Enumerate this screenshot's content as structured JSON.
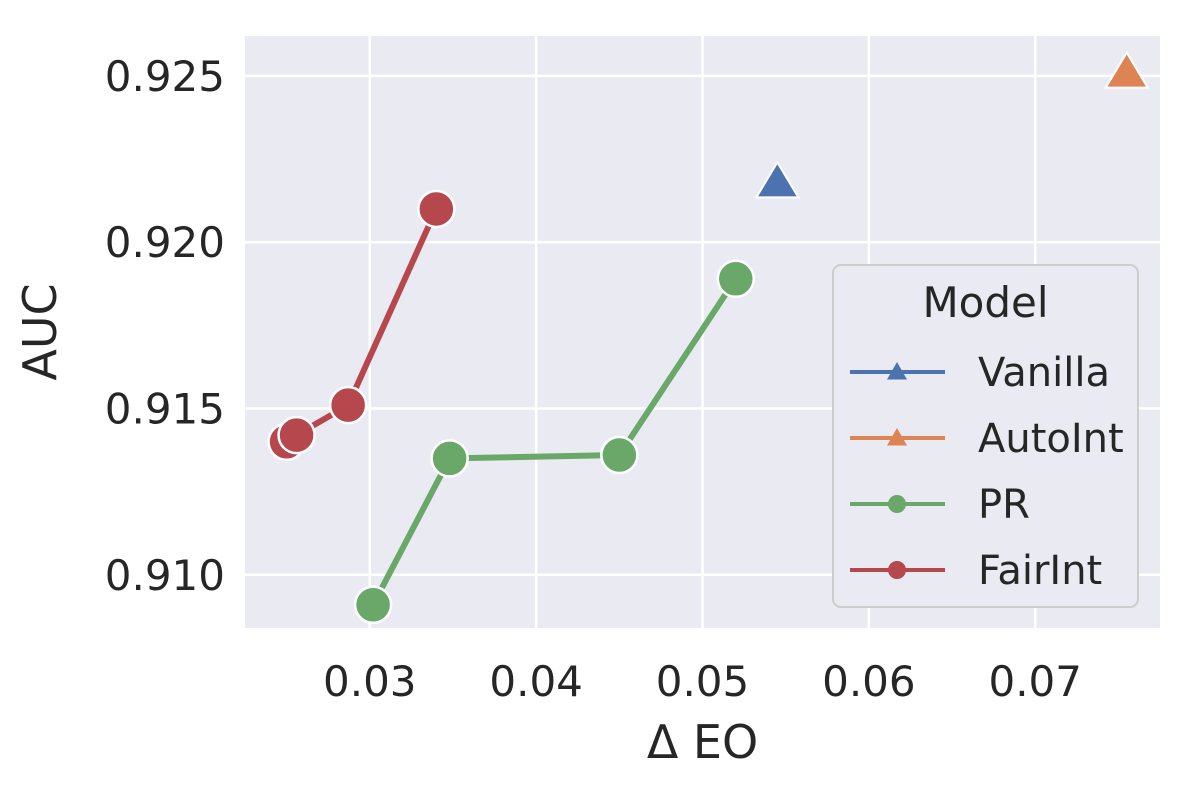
{
  "chart_data": {
    "type": "line",
    "xlabel": "Δ EO",
    "ylabel": "AUC",
    "xlim": [
      0.0225,
      0.0775
    ],
    "ylim": [
      0.9084,
      0.9262
    ],
    "xticks": [
      0.03,
      0.04,
      0.05,
      0.06,
      0.07
    ],
    "xtick_labels": [
      "0.03",
      "0.04",
      "0.05",
      "0.06",
      "0.07"
    ],
    "yticks": [
      0.91,
      0.915,
      0.92,
      0.925
    ],
    "ytick_labels": [
      "0.910",
      "0.915",
      "0.920",
      "0.925"
    ],
    "grid": true,
    "background": "#eaeaf2",
    "legend": {
      "title": "Model",
      "placement": "center-right"
    },
    "series": [
      {
        "name": "Vanilla",
        "marker": "triangle",
        "color": "#4c72b0",
        "x": [
          0.0545
        ],
        "y": [
          0.9218
        ]
      },
      {
        "name": "AutoInt",
        "marker": "triangle",
        "color": "#dd8452",
        "x": [
          0.0755
        ],
        "y": [
          0.9251
        ]
      },
      {
        "name": "PR",
        "marker": "circle",
        "color": "#6aa86a",
        "x": [
          0.0302,
          0.0348,
          0.045,
          0.052
        ],
        "y": [
          0.9091,
          0.9135,
          0.9136,
          0.9189
        ]
      },
      {
        "name": "FairInt",
        "marker": "circle",
        "color": "#b5474d",
        "x": [
          0.025,
          0.0256,
          0.0287,
          0.034
        ],
        "y": [
          0.914,
          0.9142,
          0.9151,
          0.921
        ]
      }
    ]
  }
}
